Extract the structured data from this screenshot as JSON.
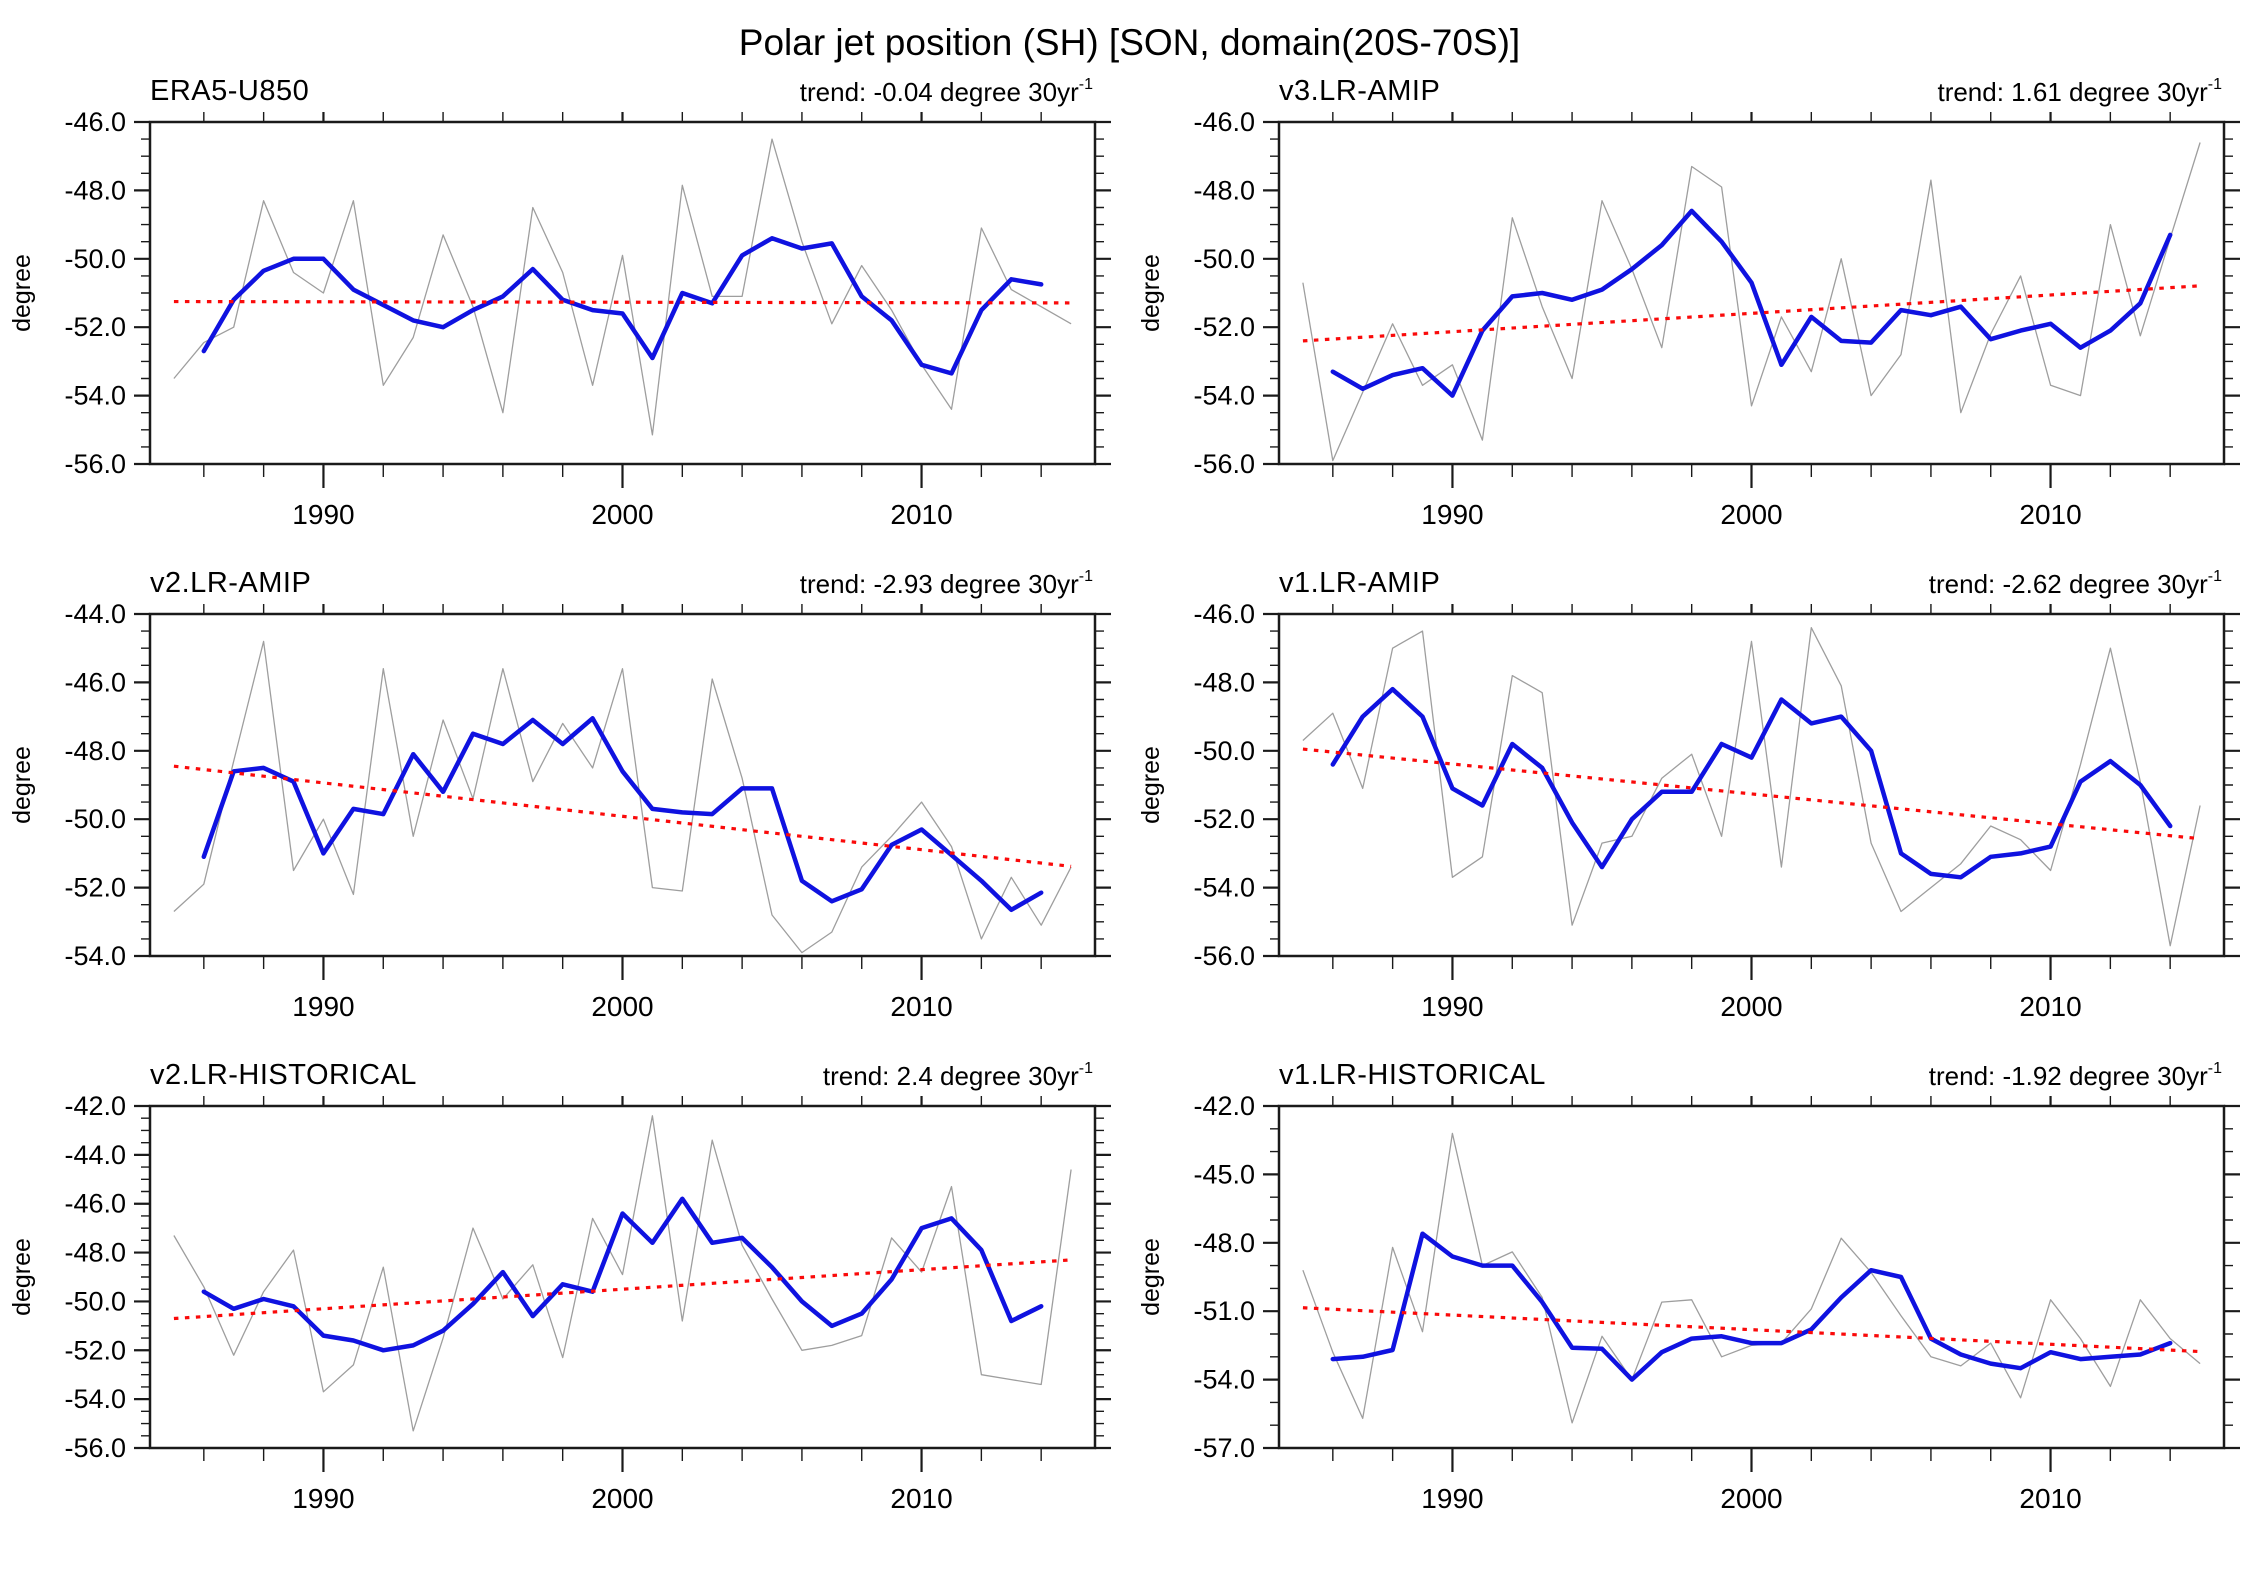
{
  "page": {
    "title": "Polar jet position (SH) [SON, domain(20S-70S)]"
  },
  "chart_data": {
    "type": "line",
    "grid": "off",
    "legend": "none",
    "xlim": [
      1984.2,
      2015.8
    ],
    "x_ticks": [
      1990,
      2000,
      2010
    ],
    "x_minor_step": 2,
    "x_minor_range": [
      1986,
      2014
    ],
    "colors": {
      "annual": "#9e9e9e",
      "smoothed": "#0f12e0",
      "trend": "#fa0a0a",
      "axis": "#1a1a1a"
    },
    "panels": [
      {
        "title": "ERA5-U850",
        "trend_text": "trend: -0.04 degree 30yr",
        "trend_sup": "-1",
        "trend_value_per_30yr": -0.04,
        "ylabel": "degree",
        "ylim": [
          -56,
          -46
        ],
        "yticks": [
          -46,
          -48,
          -50,
          -52,
          -54,
          -56
        ],
        "ytick_minor_step": 0.5,
        "annual": {
          "start_year": 1985,
          "values": [
            -53.5,
            -52.45,
            -52.0,
            -48.3,
            -50.4,
            -51.0,
            -48.3,
            -53.7,
            -52.3,
            -49.3,
            -51.4,
            -54.5,
            -48.5,
            -50.4,
            -53.7,
            -49.9,
            -55.15,
            -47.85,
            -51.1,
            -51.1,
            -46.5,
            -49.5,
            -51.9,
            -50.2,
            -51.5,
            -53.1,
            -54.4,
            -49.1,
            -50.9,
            -51.4,
            -51.9
          ]
        },
        "smoothed": {
          "start_year": 1986,
          "values": [
            -52.7,
            -51.2,
            -50.35,
            -50.0,
            -50.0,
            -50.9,
            -51.35,
            -51.8,
            -52.0,
            -51.5,
            -51.1,
            -50.3,
            -51.2,
            -51.5,
            -51.6,
            -52.9,
            -51.0,
            -51.3,
            -49.9,
            -49.4,
            -49.7,
            -49.55,
            -51.1,
            -51.8,
            -53.1,
            -53.35,
            -51.5,
            -50.6,
            -50.75
          ]
        },
        "trend_line": {
          "x": [
            1985,
            2015
          ],
          "y": [
            -51.25,
            -51.29
          ]
        }
      },
      {
        "title": "v3.LR-AMIP",
        "trend_text": "trend: 1.61 degree 30yr",
        "trend_sup": "-1",
        "trend_value_per_30yr": 1.61,
        "ylabel": "degree",
        "ylim": [
          -56,
          -46
        ],
        "yticks": [
          -46,
          -48,
          -50,
          -52,
          -54,
          -56
        ],
        "ytick_minor_step": 0.5,
        "annual": {
          "start_year": 1985,
          "values": [
            -50.7,
            -55.9,
            -53.9,
            -51.9,
            -53.7,
            -53.1,
            -55.3,
            -48.8,
            -51.4,
            -53.5,
            -48.3,
            -50.3,
            -52.6,
            -47.3,
            -47.9,
            -54.3,
            -51.7,
            -53.3,
            -50.0,
            -54.0,
            -52.8,
            -47.7,
            -54.5,
            -52.2,
            -50.5,
            -53.7,
            -54.0,
            -49.0,
            -52.25,
            -49.4,
            -46.6
          ]
        },
        "smoothed": {
          "start_year": 1986,
          "values": [
            -53.3,
            -53.8,
            -53.4,
            -53.2,
            -54.0,
            -52.1,
            -51.1,
            -51.0,
            -51.2,
            -50.9,
            -50.3,
            -49.6,
            -48.6,
            -49.5,
            -50.7,
            -53.1,
            -51.7,
            -52.4,
            -52.45,
            -51.5,
            -51.65,
            -51.4,
            -52.35,
            -52.1,
            -51.9,
            -52.6,
            -52.1,
            -51.3,
            -49.3
          ]
        },
        "trend_line": {
          "x": [
            1985,
            2015
          ],
          "y": [
            -52.4,
            -50.79
          ]
        }
      },
      {
        "title": "v2.LR-AMIP",
        "trend_text": "trend: -2.93 degree 30yr",
        "trend_sup": "-1",
        "trend_value_per_30yr": -2.93,
        "ylabel": "degree",
        "ylim": [
          -54,
          -44
        ],
        "yticks": [
          -44,
          -46,
          -48,
          -50,
          -52,
          -54
        ],
        "ytick_minor_step": 0.5,
        "annual": {
          "start_year": 1985,
          "values": [
            -52.7,
            -51.9,
            -48.3,
            -44.8,
            -51.5,
            -50.0,
            -52.2,
            -45.6,
            -50.5,
            -47.1,
            -49.4,
            -45.6,
            -48.9,
            -47.2,
            -48.5,
            -45.6,
            -52.0,
            -52.1,
            -45.9,
            -48.8,
            -52.8,
            -53.9,
            -53.3,
            -51.4,
            -50.5,
            -49.5,
            -50.8,
            -53.5,
            -51.7,
            -53.1,
            -51.4
          ]
        },
        "smoothed": {
          "start_year": 1986,
          "values": [
            -51.1,
            -48.6,
            -48.5,
            -48.9,
            -51.0,
            -49.7,
            -49.85,
            -48.1,
            -49.2,
            -47.5,
            -47.8,
            -47.1,
            -47.8,
            -47.05,
            -48.6,
            -49.7,
            -49.8,
            -49.85,
            -49.1,
            -49.1,
            -51.8,
            -52.4,
            -52.05,
            -50.75,
            -50.3,
            -51.05,
            -51.8,
            -52.65,
            -52.15
          ]
        },
        "trend_line": {
          "x": [
            1985,
            2015
          ],
          "y": [
            -48.45,
            -51.38
          ]
        }
      },
      {
        "title": "v1.LR-AMIP",
        "trend_text": "trend: -2.62 degree 30yr",
        "trend_sup": "-1",
        "trend_value_per_30yr": -2.62,
        "ylabel": "degree",
        "ylim": [
          -56,
          -46
        ],
        "yticks": [
          -46,
          -48,
          -50,
          -52,
          -54,
          -56
        ],
        "ytick_minor_step": 0.5,
        "annual": {
          "start_year": 1985,
          "values": [
            -49.7,
            -48.9,
            -51.1,
            -47.0,
            -46.5,
            -53.7,
            -53.1,
            -47.8,
            -48.3,
            -55.1,
            -52.7,
            -52.5,
            -50.8,
            -50.1,
            -52.5,
            -46.8,
            -53.4,
            -46.4,
            -48.1,
            -52.7,
            -54.7,
            -54.0,
            -53.3,
            -52.2,
            -52.6,
            -53.5,
            -50.4,
            -47.0,
            -50.9,
            -55.7,
            -51.6
          ]
        },
        "smoothed": {
          "start_year": 1986,
          "values": [
            -50.4,
            -49.0,
            -48.2,
            -49.0,
            -51.1,
            -51.6,
            -49.8,
            -50.5,
            -52.1,
            -53.4,
            -52.0,
            -51.2,
            -51.2,
            -49.8,
            -50.2,
            -48.5,
            -49.2,
            -49.0,
            -50.0,
            -53.0,
            -53.6,
            -53.7,
            -53.1,
            -53.0,
            -52.8,
            -50.9,
            -50.3,
            -51.0,
            -52.2
          ]
        },
        "trend_line": {
          "x": [
            1985,
            2015
          ],
          "y": [
            -49.95,
            -52.57
          ]
        }
      },
      {
        "title": "v2.LR-HISTORICAL",
        "trend_text": "trend: 2.4 degree 30yr",
        "trend_sup": "-1",
        "trend_value_per_30yr": 2.4,
        "ylabel": "degree",
        "ylim": [
          -56,
          -42
        ],
        "yticks": [
          -42,
          -44,
          -46,
          -48,
          -50,
          -52,
          -54,
          -56
        ],
        "ytick_minor_step": 0.5,
        "annual": {
          "start_year": 1985,
          "values": [
            -47.3,
            -49.4,
            -52.2,
            -49.6,
            -47.9,
            -53.7,
            -52.6,
            -48.6,
            -55.3,
            -51.5,
            -47.0,
            -49.9,
            -48.5,
            -52.3,
            -46.6,
            -48.9,
            -42.4,
            -50.8,
            -43.4,
            -47.7,
            -49.9,
            -52.0,
            -51.8,
            -51.4,
            -47.4,
            -48.8,
            -45.3,
            -53.0,
            -53.2,
            -53.4,
            -44.6
          ]
        },
        "smoothed": {
          "start_year": 1986,
          "values": [
            -49.6,
            -50.3,
            -49.9,
            -50.2,
            -51.4,
            -51.6,
            -52.0,
            -51.8,
            -51.2,
            -50.1,
            -48.8,
            -50.6,
            -49.3,
            -49.6,
            -46.4,
            -47.6,
            -45.8,
            -47.6,
            -47.4,
            -48.6,
            -50.0,
            -51.0,
            -50.5,
            -49.1,
            -47.0,
            -46.6,
            -47.9,
            -50.8,
            -50.2
          ]
        },
        "trend_line": {
          "x": [
            1985,
            2015
          ],
          "y": [
            -50.7,
            -48.3
          ]
        }
      },
      {
        "title": "v1.LR-HISTORICAL",
        "trend_text": "trend: -1.92 degree 30yr",
        "trend_sup": "-1",
        "trend_value_per_30yr": -1.92,
        "ylabel": "degree",
        "ylim": [
          -57,
          -42
        ],
        "yticks": [
          -42,
          -45,
          -48,
          -51,
          -54,
          -57
        ],
        "ytick_minor_step": 1,
        "annual": {
          "start_year": 1985,
          "values": [
            -49.2,
            -52.8,
            -55.7,
            -48.2,
            -51.9,
            -43.2,
            -49.0,
            -48.4,
            -50.4,
            -55.9,
            -52.1,
            -54.0,
            -50.6,
            -50.5,
            -53.0,
            -52.5,
            -52.4,
            -50.9,
            -47.8,
            -49.3,
            -51.2,
            -53.0,
            -53.4,
            -52.4,
            -54.8,
            -50.5,
            -52.2,
            -54.3,
            -50.5,
            -52.2,
            -53.3
          ]
        },
        "smoothed": {
          "start_year": 1986,
          "values": [
            -53.1,
            -53.0,
            -52.7,
            -47.6,
            -48.6,
            -49.0,
            -49.0,
            -50.6,
            -52.6,
            -52.65,
            -54.0,
            -52.8,
            -52.2,
            -52.1,
            -52.4,
            -52.4,
            -51.8,
            -50.4,
            -49.2,
            -49.5,
            -52.2,
            -52.9,
            -53.3,
            -53.5,
            -52.8,
            -53.1,
            -53.0,
            -52.9,
            -52.4
          ]
        },
        "trend_line": {
          "x": [
            1985,
            2015
          ],
          "y": [
            -50.85,
            -52.77
          ]
        }
      }
    ]
  }
}
